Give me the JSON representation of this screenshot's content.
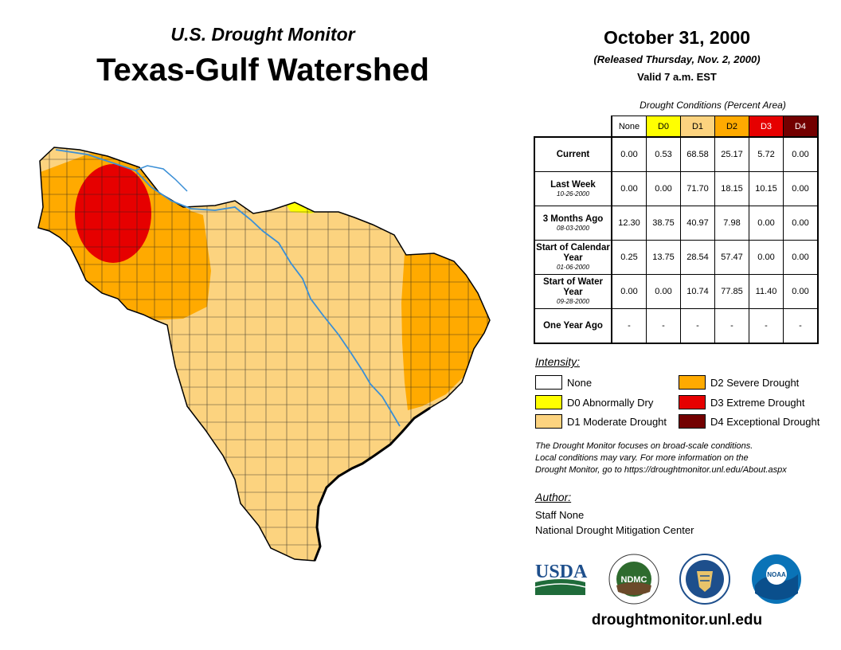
{
  "header": {
    "subtitle": "U.S. Drought Monitor",
    "title": "Texas-Gulf Watershed",
    "date": "October 31, 2000",
    "released": "(Released Thursday, Nov. 2, 2000)",
    "valid": "Valid 7 a.m. EST"
  },
  "table": {
    "caption": "Drought Conditions (Percent Area)",
    "columns": [
      "None",
      "D0",
      "D1",
      "D2",
      "D3",
      "D4"
    ],
    "rows": [
      {
        "label": "Current",
        "date": "",
        "values": [
          "0.00",
          "0.53",
          "68.58",
          "25.17",
          "5.72",
          "0.00"
        ]
      },
      {
        "label": "Last Week",
        "date": "10-26-2000",
        "values": [
          "0.00",
          "0.00",
          "71.70",
          "18.15",
          "10.15",
          "0.00"
        ]
      },
      {
        "label": "3 Months Ago",
        "date": "08-03-2000",
        "values": [
          "12.30",
          "38.75",
          "40.97",
          "7.98",
          "0.00",
          "0.00"
        ]
      },
      {
        "label": "Start of Calendar Year",
        "date": "01-06-2000",
        "values": [
          "0.25",
          "13.75",
          "28.54",
          "57.47",
          "0.00",
          "0.00"
        ]
      },
      {
        "label": "Start of Water Year",
        "date": "09-28-2000",
        "values": [
          "0.00",
          "0.00",
          "10.74",
          "77.85",
          "11.40",
          "0.00"
        ]
      },
      {
        "label": "One Year Ago",
        "date": "",
        "values": [
          "-",
          "-",
          "-",
          "-",
          "-",
          "-"
        ]
      }
    ]
  },
  "colors": {
    "none": "#ffffff",
    "d0": "#ffff00",
    "d1": "#fcd37f",
    "d2": "#ffaa00",
    "d3": "#e60000",
    "d4": "#730000",
    "river": "#3a8fd6"
  },
  "legend": {
    "title": "Intensity:",
    "items": [
      {
        "label": "None",
        "color": "#ffffff"
      },
      {
        "label": "D0 Abnormally Dry",
        "color": "#ffff00"
      },
      {
        "label": "D1 Moderate Drought",
        "color": "#fcd37f"
      },
      {
        "label": "D2 Severe Drought",
        "color": "#ffaa00"
      },
      {
        "label": "D3 Extreme Drought",
        "color": "#e60000"
      },
      {
        "label": "D4 Exceptional Drought",
        "color": "#730000"
      }
    ]
  },
  "note": {
    "line1": "The Drought Monitor focuses on broad-scale conditions.",
    "line2": "Local conditions may vary. For more information on the",
    "line3": "Drought Monitor, go to https://droughtmonitor.unl.edu/About.aspx"
  },
  "author": {
    "title": "Author:",
    "name": "Staff None",
    "org": "National Drought Mitigation Center"
  },
  "logos": {
    "usda": "USDA",
    "ndmc": "NDMC",
    "noaa": "NOAA"
  },
  "footer_url": "droughtmonitor.unl.edu"
}
